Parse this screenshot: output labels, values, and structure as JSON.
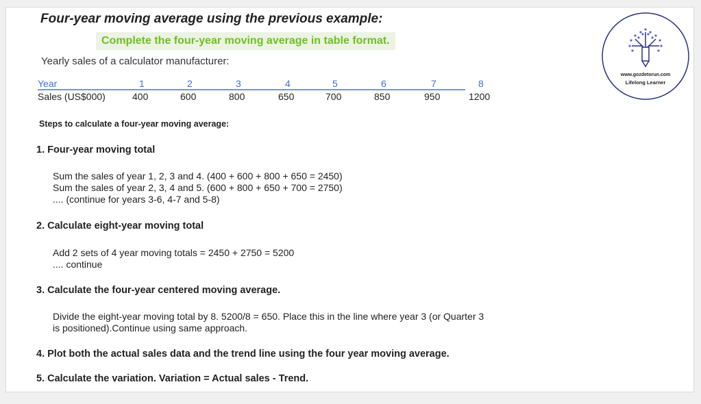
{
  "title": "Four-year moving average using the previous example:",
  "highlight": "Complete the four-year moving average in table format.",
  "intro": "Yearly sales of a calculator manufacturer:",
  "table": {
    "year_label": "Year",
    "sales_label": "Sales (US$000)",
    "years": [
      "1",
      "2",
      "3",
      "4",
      "5",
      "6",
      "7",
      "8"
    ],
    "sales": [
      "400",
      "600",
      "800",
      "650",
      "700",
      "850",
      "950",
      "1200"
    ]
  },
  "steps_heading": "Steps to calculate a four-year moving average:",
  "steps": [
    {
      "heading": "1. Four-year moving total",
      "lines": [
        "Sum the sales of year 1, 2, 3 and 4. (400 + 600 + 800 + 650 = 2450)",
        "Sum the sales of year 2, 3, 4 and 5. (600 + 800 + 650 + 700 = 2750)",
        ".... (continue for years 3-6, 4-7 and 5-8)"
      ]
    },
    {
      "heading": "2. Calculate eight-year moving total",
      "lines": [
        "Add 2 sets of 4 year moving totals = 2450 + 2750 = 5200",
        ".... continue"
      ]
    },
    {
      "heading": "3. Calculate the four-year centered moving average.",
      "lines": [
        "Divide the eight-year moving total by 8. 5200/8 = 650. Place this in the line where year 3 (or Quarter 3",
        "is positioned).Continue using same approach."
      ]
    },
    {
      "heading": "4. Plot both the actual sales data and the trend line using the four year moving average.",
      "lines": []
    },
    {
      "heading": "5. Calculate the variation. Variation = Actual sales - Trend.",
      "lines": []
    }
  ],
  "logo": {
    "url": "www.gozdetorun.com",
    "tagline": "Lifelong Learner",
    "color": "#2a2f86"
  },
  "colors": {
    "highlight_text": "#6cc11f",
    "year_text": "#3b6fd0"
  }
}
